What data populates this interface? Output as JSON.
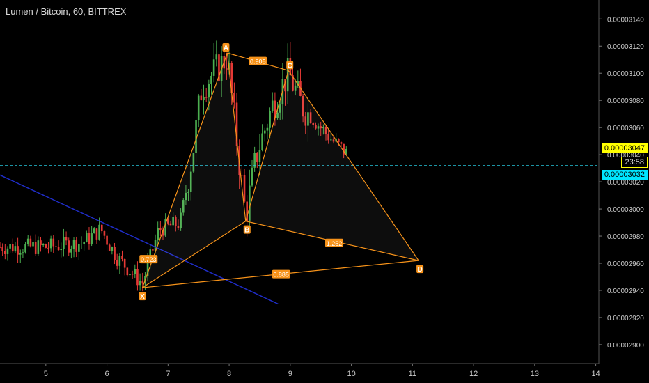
{
  "header": {
    "title": "Lumen / Bitcoin, 60, BITTREX"
  },
  "price_badges": {
    "last_price": "0.00003047",
    "countdown": "23:58",
    "level_price": "0.00003032"
  },
  "colors": {
    "background": "#000000",
    "up_candle": "#4caf50",
    "down_candle": "#e53935",
    "pattern_line": "#f7931a",
    "trendline": "#1f2dc8",
    "dashed_level": "#26c6da",
    "badge_yellow": "#ffff00",
    "badge_cyan": "#00e5ff"
  },
  "chart_data": {
    "type": "candlestick",
    "x_ticks": [
      "5",
      "6",
      "7",
      "8",
      "9",
      "10",
      "11",
      "12",
      "13",
      "14"
    ],
    "y_ticks": [
      "0.00002900",
      "0.00002920",
      "0.00002940",
      "0.00002960",
      "0.00002980",
      "0.00003000",
      "0.00003020",
      "0.00003040",
      "0.00003060",
      "0.00003080",
      "0.00003100",
      "0.00003120",
      "0.00003140"
    ],
    "xlim": [
      4.25,
      14.05
    ],
    "ylim": [
      2.8861e-05,
      3.154e-05
    ],
    "pattern_points": [
      {
        "label": "X",
        "x": 6.58,
        "y": 2.942e-05
      },
      {
        "label": "A",
        "x": 7.97,
        "y": 3.115e-05
      },
      {
        "label": "B",
        "x": 8.27,
        "y": 2.991e-05
      },
      {
        "label": "C",
        "x": 8.97,
        "y": 3.102e-05
      },
      {
        "label": "D",
        "x": 11.1,
        "y": 2.962e-05
      }
    ],
    "ratios": [
      {
        "label": "0.905",
        "x": 8.47,
        "y": 3.109e-05
      },
      {
        "label": "0.723",
        "x": 6.68,
        "y": 2.963e-05
      },
      {
        "label": "1.252",
        "x": 9.72,
        "y": 2.975e-05
      },
      {
        "label": "0.885",
        "x": 8.85,
        "y": 2.952e-05
      }
    ],
    "trendline": {
      "x": [
        4.25,
        8.8
      ],
      "y": [
        3.025e-05,
        2.93e-05
      ]
    },
    "dashed_level": 3.032e-05
  }
}
